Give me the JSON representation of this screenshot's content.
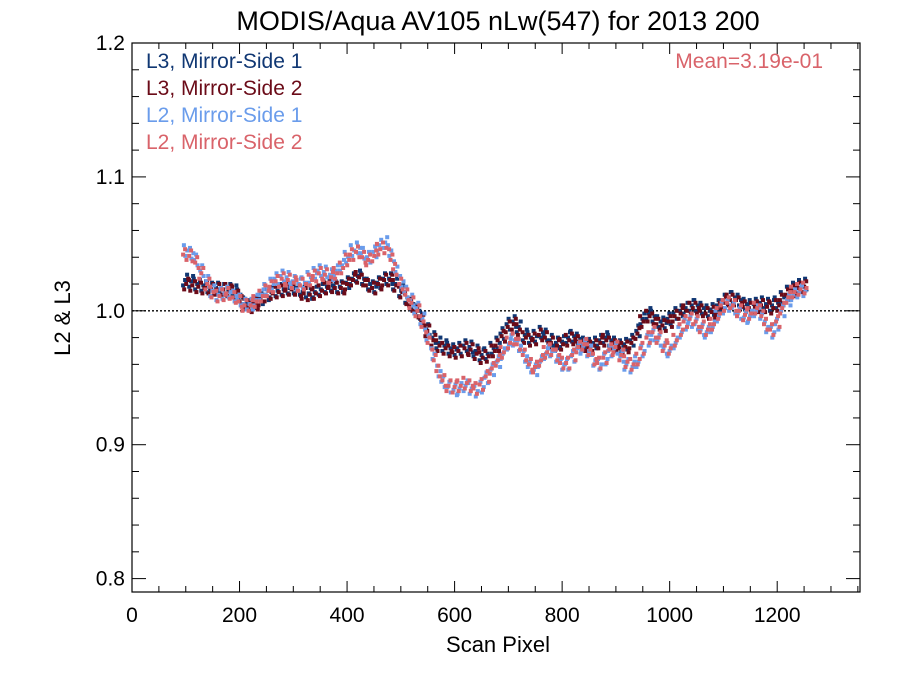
{
  "chart_data": {
    "type": "scatter",
    "title": "MODIS/Aqua AV105 nLw(547) for 2013 200",
    "xlabel": "Scan Pixel",
    "ylabel": "L2 & L3",
    "xlim": [
      0,
      1354
    ],
    "ylim": [
      0.79,
      1.2
    ],
    "xticks": [
      0,
      200,
      400,
      600,
      800,
      1000,
      1200
    ],
    "xtick_labels": [
      "0",
      "200",
      "400",
      "600",
      "800",
      "1000",
      "1200"
    ],
    "yticks": [
      0.8,
      0.9,
      1.0,
      1.1,
      1.2
    ],
    "ytick_labels": [
      "0.8",
      "0.9",
      "1.0",
      "1.1",
      "1.2"
    ],
    "x_minor_step": 50,
    "y_minor_step": 0.02,
    "reference_line": 1.0,
    "grid": false,
    "legend_position": "top-left",
    "annotation": {
      "text": "Mean=3.19e-01",
      "color": "#d9636a",
      "position": "top-right"
    },
    "point_x_step": 10,
    "series": [
      {
        "name": "L3, Mirror-Side 1",
        "color": "#103773",
        "x": [
          100,
          110,
          120,
          130,
          140,
          150,
          160,
          170,
          180,
          190,
          200,
          210,
          220,
          230,
          240,
          250,
          260,
          270,
          280,
          290,
          300,
          310,
          320,
          330,
          340,
          350,
          360,
          370,
          380,
          390,
          400,
          410,
          420,
          430,
          440,
          450,
          460,
          470,
          480,
          490,
          500,
          510,
          520,
          530,
          540,
          550,
          560,
          570,
          580,
          590,
          600,
          610,
          620,
          630,
          640,
          650,
          660,
          670,
          680,
          690,
          700,
          710,
          720,
          730,
          740,
          750,
          760,
          770,
          780,
          790,
          800,
          810,
          820,
          830,
          840,
          850,
          860,
          870,
          880,
          890,
          900,
          910,
          920,
          930,
          940,
          950,
          960,
          970,
          980,
          990,
          1000,
          1010,
          1020,
          1030,
          1040,
          1050,
          1060,
          1070,
          1080,
          1090,
          1100,
          1110,
          1120,
          1130,
          1140,
          1150,
          1160,
          1170,
          1180,
          1190,
          1200,
          1210,
          1220,
          1230,
          1240,
          1250
        ],
        "y": [
          1.023,
          1.022,
          1.02,
          1.019,
          1.018,
          1.017,
          1.017,
          1.016,
          1.016,
          1.015,
          1.012,
          1.006,
          1.004,
          1.006,
          1.009,
          1.012,
          1.014,
          1.015,
          1.016,
          1.017,
          1.017,
          1.016,
          1.014,
          1.013,
          1.014,
          1.016,
          1.018,
          1.019,
          1.018,
          1.018,
          1.021,
          1.024,
          1.026,
          1.024,
          1.02,
          1.018,
          1.021,
          1.024,
          1.024,
          1.02,
          1.015,
          1.01,
          1.005,
          1.0,
          0.994,
          0.986,
          0.98,
          0.976,
          0.974,
          0.972,
          0.971,
          0.972,
          0.974,
          0.973,
          0.97,
          0.967,
          0.968,
          0.972,
          0.976,
          0.983,
          0.99,
          0.992,
          0.988,
          0.982,
          0.98,
          0.981,
          0.984,
          0.982,
          0.978,
          0.976,
          0.977,
          0.98,
          0.981,
          0.979,
          0.976,
          0.975,
          0.976,
          0.978,
          0.98,
          0.978,
          0.976,
          0.974,
          0.975,
          0.978,
          0.985,
          0.994,
          0.998,
          0.996,
          0.992,
          0.991,
          0.994,
          0.998,
          1.0,
          1.002,
          1.004,
          1.004,
          1.002,
          1.0,
          1.001,
          1.004,
          1.008,
          1.01,
          1.01,
          1.008,
          1.005,
          1.004,
          1.005,
          1.006,
          1.005,
          1.004,
          1.006,
          1.01,
          1.014,
          1.017,
          1.019,
          1.02
        ]
      },
      {
        "name": "L3, Mirror-Side 2",
        "color": "#6b0b18",
        "x": [
          100,
          110,
          120,
          130,
          140,
          150,
          160,
          170,
          180,
          190,
          200,
          210,
          220,
          230,
          240,
          250,
          260,
          270,
          280,
          290,
          300,
          310,
          320,
          330,
          340,
          350,
          360,
          370,
          380,
          390,
          400,
          410,
          420,
          430,
          440,
          450,
          460,
          470,
          480,
          490,
          500,
          510,
          520,
          530,
          540,
          550,
          560,
          570,
          580,
          590,
          600,
          610,
          620,
          630,
          640,
          650,
          660,
          670,
          680,
          690,
          700,
          710,
          720,
          730,
          740,
          750,
          760,
          770,
          780,
          790,
          800,
          810,
          820,
          830,
          840,
          850,
          860,
          870,
          880,
          890,
          900,
          910,
          920,
          930,
          940,
          950,
          960,
          970,
          980,
          990,
          1000,
          1010,
          1020,
          1030,
          1040,
          1050,
          1060,
          1070,
          1080,
          1090,
          1100,
          1110,
          1120,
          1130,
          1140,
          1150,
          1160,
          1170,
          1180,
          1190,
          1200,
          1210,
          1220,
          1230,
          1240,
          1250
        ],
        "y": [
          1.02,
          1.019,
          1.018,
          1.017,
          1.017,
          1.016,
          1.016,
          1.016,
          1.015,
          1.014,
          1.011,
          1.005,
          1.003,
          1.005,
          1.008,
          1.011,
          1.013,
          1.014,
          1.015,
          1.016,
          1.016,
          1.015,
          1.013,
          1.012,
          1.013,
          1.015,
          1.017,
          1.018,
          1.017,
          1.017,
          1.02,
          1.023,
          1.025,
          1.023,
          1.019,
          1.017,
          1.02,
          1.023,
          1.023,
          1.019,
          1.014,
          1.009,
          1.004,
          0.999,
          0.993,
          0.985,
          0.978,
          0.974,
          0.972,
          0.97,
          0.969,
          0.97,
          0.972,
          0.971,
          0.968,
          0.965,
          0.966,
          0.97,
          0.974,
          0.981,
          0.988,
          0.99,
          0.986,
          0.98,
          0.978,
          0.979,
          0.982,
          0.98,
          0.976,
          0.974,
          0.975,
          0.978,
          0.979,
          0.977,
          0.974,
          0.973,
          0.974,
          0.976,
          0.978,
          0.976,
          0.974,
          0.972,
          0.973,
          0.976,
          0.983,
          0.992,
          0.996,
          0.994,
          0.99,
          0.989,
          0.992,
          0.996,
          0.998,
          1.0,
          1.002,
          1.002,
          1.0,
          0.998,
          0.999,
          1.002,
          1.006,
          1.008,
          1.008,
          1.006,
          1.003,
          1.002,
          1.003,
          1.004,
          1.003,
          1.002,
          1.004,
          1.008,
          1.012,
          1.015,
          1.017,
          1.018
        ]
      },
      {
        "name": "L2, Mirror-Side 1",
        "color": "#6a9ceb",
        "x": [
          100,
          110,
          120,
          130,
          140,
          150,
          160,
          170,
          180,
          190,
          200,
          210,
          220,
          230,
          240,
          250,
          260,
          270,
          280,
          290,
          300,
          310,
          320,
          330,
          340,
          350,
          360,
          370,
          380,
          390,
          400,
          410,
          420,
          430,
          440,
          450,
          460,
          470,
          480,
          490,
          500,
          510,
          520,
          530,
          540,
          550,
          560,
          570,
          580,
          590,
          600,
          610,
          620,
          630,
          640,
          650,
          660,
          670,
          680,
          690,
          700,
          710,
          720,
          730,
          740,
          750,
          760,
          770,
          780,
          790,
          800,
          810,
          820,
          830,
          840,
          850,
          860,
          870,
          880,
          890,
          900,
          910,
          920,
          930,
          940,
          950,
          960,
          970,
          980,
          990,
          1000,
          1010,
          1020,
          1030,
          1040,
          1050,
          1060,
          1070,
          1080,
          1090,
          1100,
          1110,
          1120,
          1130,
          1140,
          1150,
          1160,
          1170,
          1180,
          1190,
          1200,
          1210,
          1220,
          1230,
          1240,
          1250
        ],
        "y": [
          1.045,
          1.043,
          1.038,
          1.03,
          1.022,
          1.015,
          1.012,
          1.013,
          1.014,
          1.011,
          1.008,
          1.005,
          1.005,
          1.008,
          1.012,
          1.016,
          1.02,
          1.024,
          1.026,
          1.025,
          1.022,
          1.02,
          1.021,
          1.025,
          1.028,
          1.03,
          1.029,
          1.027,
          1.03,
          1.034,
          1.04,
          1.045,
          1.047,
          1.043,
          1.04,
          1.044,
          1.049,
          1.051,
          1.045,
          1.033,
          1.022,
          1.014,
          1.008,
          1.002,
          0.994,
          0.982,
          0.968,
          0.955,
          0.947,
          0.943,
          0.941,
          0.942,
          0.944,
          0.942,
          0.94,
          0.943,
          0.95,
          0.956,
          0.962,
          0.968,
          0.975,
          0.978,
          0.974,
          0.966,
          0.958,
          0.956,
          0.962,
          0.968,
          0.97,
          0.966,
          0.96,
          0.96,
          0.966,
          0.972,
          0.974,
          0.97,
          0.963,
          0.96,
          0.964,
          0.97,
          0.972,
          0.966,
          0.96,
          0.958,
          0.962,
          0.97,
          0.978,
          0.982,
          0.978,
          0.972,
          0.97,
          0.976,
          0.984,
          0.99,
          0.992,
          0.99,
          0.986,
          0.984,
          0.988,
          0.996,
          1.002,
          1.004,
          1.002,
          0.998,
          0.995,
          0.996,
          1.0,
          0.998,
          0.988,
          0.984,
          0.99,
          1.0,
          1.008,
          1.012,
          1.014,
          1.015
        ]
      },
      {
        "name": "L2, Mirror-Side 2",
        "color": "#d9636a",
        "x": [
          100,
          110,
          120,
          130,
          140,
          150,
          160,
          170,
          180,
          190,
          200,
          210,
          220,
          230,
          240,
          250,
          260,
          270,
          280,
          290,
          300,
          310,
          320,
          330,
          340,
          350,
          360,
          370,
          380,
          390,
          400,
          410,
          420,
          430,
          440,
          450,
          460,
          470,
          480,
          490,
          500,
          510,
          520,
          530,
          540,
          550,
          560,
          570,
          580,
          590,
          600,
          610,
          620,
          630,
          640,
          650,
          660,
          670,
          680,
          690,
          700,
          710,
          720,
          730,
          740,
          750,
          760,
          770,
          780,
          790,
          800,
          810,
          820,
          830,
          840,
          850,
          860,
          870,
          880,
          890,
          900,
          910,
          920,
          930,
          940,
          950,
          960,
          970,
          980,
          990,
          1000,
          1010,
          1020,
          1030,
          1040,
          1050,
          1060,
          1070,
          1080,
          1090,
          1100,
          1110,
          1120,
          1130,
          1140,
          1150,
          1160,
          1170,
          1180,
          1190,
          1200,
          1210,
          1220,
          1230,
          1240,
          1250
        ],
        "y": [
          1.042,
          1.041,
          1.036,
          1.028,
          1.02,
          1.014,
          1.011,
          1.012,
          1.013,
          1.01,
          1.007,
          1.004,
          1.004,
          1.007,
          1.011,
          1.015,
          1.018,
          1.022,
          1.024,
          1.023,
          1.021,
          1.019,
          1.02,
          1.023,
          1.026,
          1.028,
          1.027,
          1.025,
          1.028,
          1.032,
          1.038,
          1.042,
          1.044,
          1.04,
          1.038,
          1.041,
          1.046,
          1.047,
          1.042,
          1.031,
          1.02,
          1.012,
          1.006,
          1.0,
          0.992,
          0.98,
          0.967,
          0.955,
          0.948,
          0.944,
          0.943,
          0.944,
          0.946,
          0.944,
          0.942,
          0.945,
          0.951,
          0.957,
          0.963,
          0.969,
          0.976,
          0.979,
          0.975,
          0.967,
          0.96,
          0.958,
          0.963,
          0.969,
          0.971,
          0.967,
          0.961,
          0.961,
          0.967,
          0.973,
          0.975,
          0.971,
          0.964,
          0.961,
          0.965,
          0.971,
          0.973,
          0.967,
          0.962,
          0.96,
          0.964,
          0.972,
          0.98,
          0.984,
          0.98,
          0.974,
          0.972,
          0.978,
          0.986,
          0.992,
          0.994,
          0.992,
          0.988,
          0.986,
          0.99,
          0.998,
          1.004,
          1.006,
          1.004,
          1.0,
          0.997,
          0.998,
          1.002,
          1.0,
          0.99,
          0.986,
          0.992,
          1.002,
          1.01,
          1.014,
          1.016,
          1.017
        ]
      }
    ]
  }
}
